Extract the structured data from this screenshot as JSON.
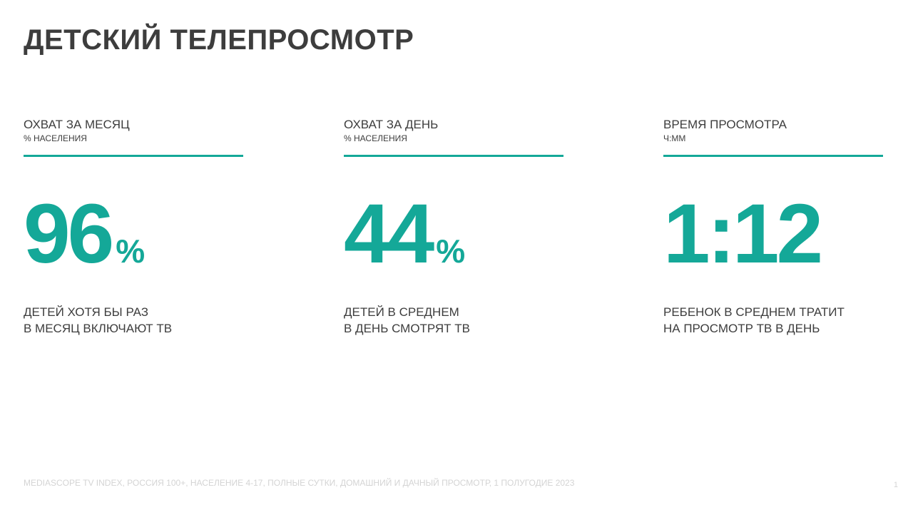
{
  "title": "ДЕТСКИЙ ТЕЛЕПРОСМОТР",
  "accent_color": "#14a898",
  "metrics": [
    {
      "label": "ОХВАТ ЗА МЕСЯЦ",
      "unit": "% НАСЕЛЕНИЯ",
      "value": "96",
      "suffix": "%",
      "desc_line1": "ДЕТЕЙ ХОТЯ БЫ РАЗ",
      "desc_line2": "В МЕСЯЦ ВКЛЮЧАЮТ ТВ"
    },
    {
      "label": "ОХВАТ ЗА ДЕНЬ",
      "unit": "% НАСЕЛЕНИЯ",
      "value": "44",
      "suffix": "%",
      "desc_line1": "ДЕТЕЙ В СРЕДНЕМ",
      "desc_line2": "В ДЕНЬ СМОТРЯТ ТВ"
    },
    {
      "label": "ВРЕМЯ ПРОСМОТРА",
      "unit": "Ч:ММ",
      "value": "1:12",
      "suffix": "",
      "desc_line1": "РЕБЕНОК В СРЕДНЕМ ТРАТИТ",
      "desc_line2": "НА ПРОСМОТР ТВ В ДЕНЬ"
    }
  ],
  "footer": {
    "source": "MEDIASCOPE TV INDEX, РОССИЯ 100+, НАСЕЛЕНИЕ 4-17, ПОЛНЫЕ СУТКИ, ДОМАШНИЙ И ДАЧНЫЙ ПРОСМОТР, 1 ПОЛУГОДИЕ 2023",
    "page_number": "1"
  }
}
